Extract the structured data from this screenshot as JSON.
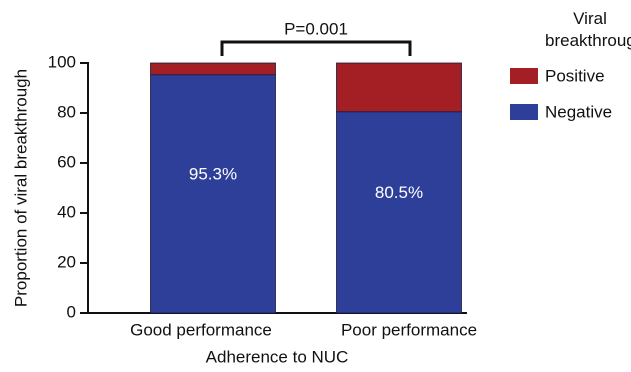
{
  "chart_data": {
    "type": "stacked_bar",
    "x_label": "Adherence to NUC",
    "y_label": "Proportion of viral breakthrough",
    "categories": [
      "Good performance",
      "Poor performance"
    ],
    "series": [
      {
        "name": "Negative",
        "color": "#2e3f9a",
        "values": [
          95.3,
          80.5
        ],
        "value_labels": [
          "95.3%",
          "80.5%"
        ]
      },
      {
        "name": "Positive",
        "color": "#a31f24",
        "values": [
          4.7,
          19.5
        ]
      }
    ],
    "ylim": [
      0,
      100
    ],
    "yticks": [
      0,
      20,
      40,
      60,
      80,
      100
    ],
    "legend_title": "Viral breakthrough",
    "annotation": "P=0.001"
  }
}
